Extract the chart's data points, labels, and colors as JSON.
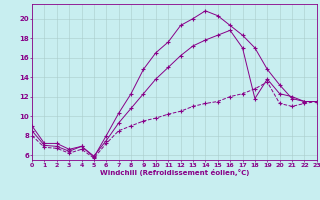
{
  "title": "",
  "xlabel": "Windchill (Refroidissement éolien,°C)",
  "bg_color": "#c8eef0",
  "line_color": "#880088",
  "grid_color": "#aacccc",
  "xlim": [
    0,
    23
  ],
  "ylim": [
    5.5,
    21.5
  ],
  "xticks": [
    0,
    1,
    2,
    3,
    4,
    5,
    6,
    7,
    8,
    9,
    10,
    11,
    12,
    13,
    14,
    15,
    16,
    17,
    18,
    19,
    20,
    21,
    22,
    23
  ],
  "yticks": [
    6,
    8,
    10,
    12,
    14,
    16,
    18,
    20
  ],
  "line1_x": [
    0,
    1,
    2,
    3,
    4,
    5,
    6,
    7,
    8,
    9,
    10,
    11,
    12,
    13,
    14,
    15,
    16,
    17,
    18,
    19,
    20,
    21,
    22,
    23
  ],
  "line1_y": [
    9.0,
    7.2,
    7.2,
    6.6,
    6.9,
    5.8,
    8.0,
    10.3,
    12.3,
    14.8,
    16.5,
    17.6,
    19.3,
    20.0,
    20.8,
    20.3,
    19.3,
    18.3,
    17.0,
    14.8,
    13.2,
    11.8,
    11.5,
    11.5
  ],
  "line2_x": [
    0,
    1,
    2,
    3,
    4,
    5,
    6,
    7,
    8,
    9,
    10,
    11,
    12,
    13,
    14,
    15,
    16,
    17,
    18,
    19,
    20,
    21,
    22,
    23
  ],
  "line2_y": [
    8.5,
    7.0,
    6.9,
    6.4,
    6.9,
    5.9,
    7.5,
    9.3,
    10.8,
    12.3,
    13.8,
    15.0,
    16.2,
    17.2,
    17.8,
    18.3,
    18.8,
    17.0,
    11.8,
    13.8,
    12.3,
    12.0,
    11.5,
    11.5
  ],
  "line3_x": [
    0,
    1,
    2,
    3,
    4,
    5,
    6,
    7,
    8,
    9,
    10,
    11,
    12,
    13,
    14,
    15,
    16,
    17,
    18,
    19,
    20,
    21,
    22,
    23
  ],
  "line3_y": [
    8.0,
    6.8,
    6.7,
    6.2,
    6.6,
    5.7,
    7.2,
    8.5,
    9.0,
    9.5,
    9.8,
    10.2,
    10.5,
    11.0,
    11.3,
    11.5,
    12.0,
    12.3,
    12.8,
    13.5,
    11.3,
    11.0,
    11.3,
    11.5
  ]
}
